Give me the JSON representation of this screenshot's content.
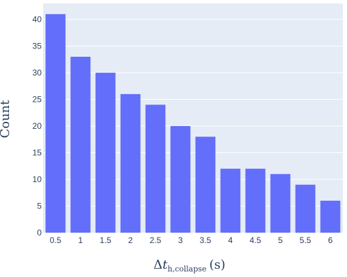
{
  "chart_data": {
    "type": "bar",
    "categories": [
      "0.5",
      "1",
      "1.5",
      "2",
      "2.5",
      "3",
      "3.5",
      "4",
      "4.5",
      "5",
      "5.5",
      "6"
    ],
    "values": [
      41,
      33,
      30,
      26,
      24,
      20,
      18,
      12,
      12,
      11,
      9,
      6
    ],
    "title": "",
    "xlabel": {
      "prefix": "Δ",
      "symbol": "t",
      "subscript": "h,collapse",
      "unit": "(s)"
    },
    "ylabel": "Count",
    "ylim": [
      0,
      43
    ],
    "yticks": [
      "0",
      "5",
      "10",
      "15",
      "20",
      "25",
      "30",
      "35",
      "40"
    ],
    "grid": true,
    "colors": {
      "bar": "#636efa",
      "plot_bg": "#e5ecf6",
      "grid": "#ffffff",
      "text": "#2a3f5f"
    }
  }
}
